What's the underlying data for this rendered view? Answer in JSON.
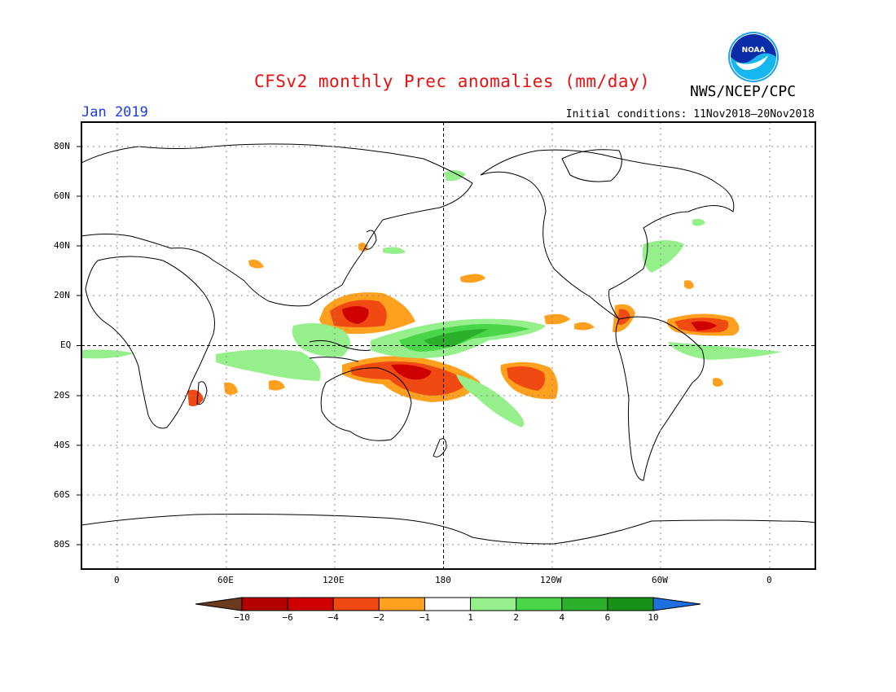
{
  "title": "CFSv2 monthly Prec anomalies (mm/day)",
  "agency": "NWS/NCEP/CPC",
  "logo_text": "NOAA",
  "forecast_month": "Jan 2019",
  "initial_conditions": "Initial conditions: 11Nov2018–20Nov2018",
  "latitude_labels": [
    "80N",
    "60N",
    "40N",
    "20N",
    "EQ",
    "20S",
    "40S",
    "60S",
    "80S"
  ],
  "longitude_labels": [
    "0",
    "60E",
    "120E",
    "180",
    "120W",
    "60W",
    "0"
  ],
  "colorbar": {
    "ticks": [
      "−10",
      "−6",
      "−4",
      "−2",
      "−1",
      "1",
      "2",
      "4",
      "6",
      "10"
    ],
    "colors": [
      "#6b3a1c",
      "#b30000",
      "#cf0000",
      "#f04a12",
      "#ffa01e",
      "#ffffff",
      "#95f08c",
      "#4ad64a",
      "#2bb02b",
      "#169216",
      "#1e6fe0"
    ]
  },
  "colors": {
    "title": "#e81010",
    "month": "#1c3ce8"
  }
}
